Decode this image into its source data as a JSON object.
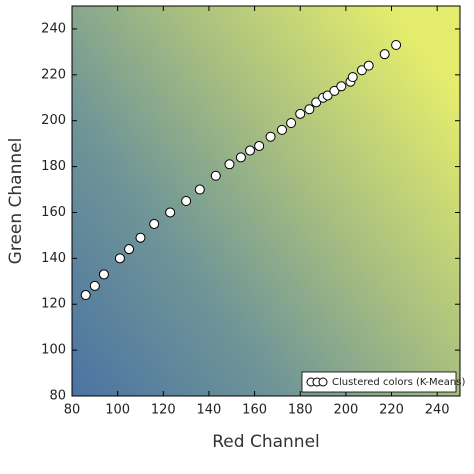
{
  "chart_data": {
    "type": "scatter",
    "x_label": "Red Channel",
    "y_label": "Green Channel",
    "xlim": [
      80,
      250
    ],
    "ylim": [
      80,
      250
    ],
    "xticks": [
      80,
      100,
      120,
      140,
      160,
      180,
      200,
      220,
      240
    ],
    "yticks": [
      80,
      100,
      120,
      140,
      160,
      180,
      200,
      220,
      240
    ],
    "legend": "lower right",
    "series": [
      {
        "name": "Clustered colors (K-Means)",
        "color": "#ffffff",
        "x": [
          86,
          90,
          94,
          101,
          105,
          110,
          116,
          123,
          130,
          136,
          143,
          149,
          154,
          158,
          162,
          167,
          172,
          176,
          180,
          184,
          187,
          190,
          192,
          195,
          198,
          202,
          203,
          207,
          210,
          217,
          222
        ],
        "values": [
          124,
          128,
          133,
          140,
          144,
          149,
          155,
          160,
          165,
          170,
          176,
          181,
          184,
          187,
          189,
          193,
          196,
          199,
          203,
          205,
          208,
          210,
          211,
          213,
          215,
          217,
          219,
          222,
          224,
          229,
          233
        ]
      }
    ]
  }
}
